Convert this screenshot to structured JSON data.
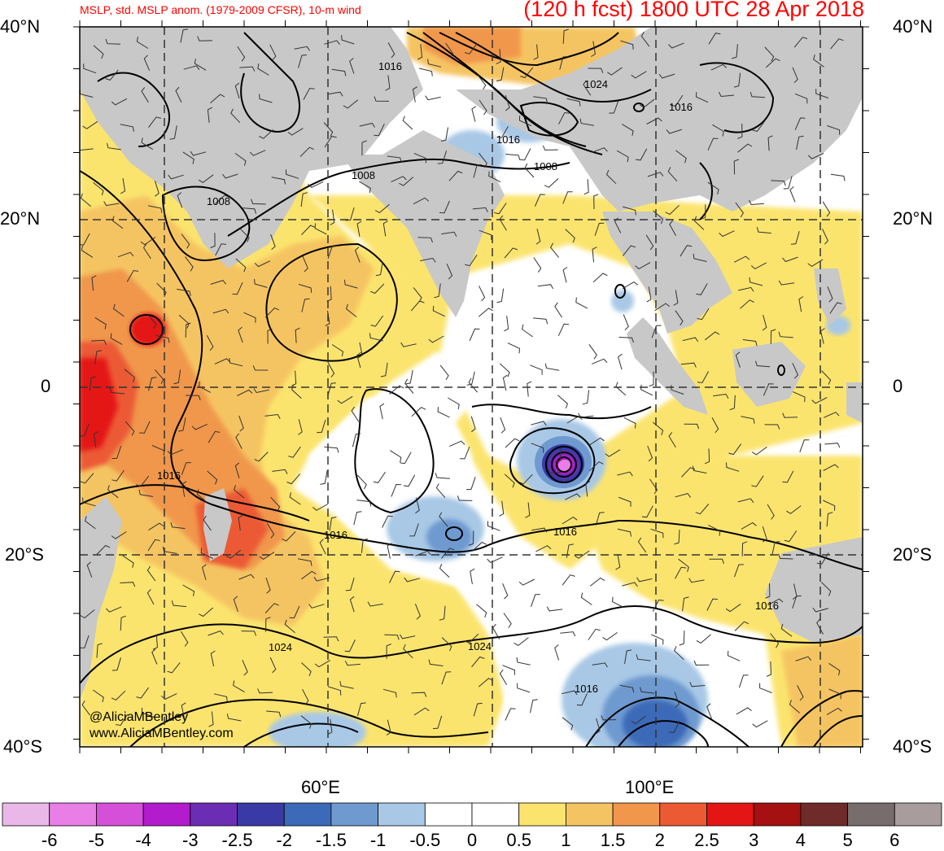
{
  "header": {
    "left_title": "MSLP, std. MSLP anom. (1979-2009 CFSR), 10-m wind",
    "right_title": "(120 h fcst) 1800 UTC 28 Apr 2018"
  },
  "axes": {
    "lat_labels_left": [
      "40°N",
      "20°N",
      "0",
      "20°S",
      "40°S"
    ],
    "lat_labels_right": [
      "40°N",
      "20°N",
      "0",
      "20°S",
      "40°S"
    ],
    "lon_labels": [
      "60°E",
      "100°E"
    ]
  },
  "contour_labels": [
    "1016",
    "1024",
    "1016",
    "1008",
    "1008",
    "1008",
    "1016",
    "1016",
    "1016",
    "1016",
    "1024",
    "1024",
    "1016",
    "1016"
  ],
  "credits": {
    "line1": "@AliciaMBentley",
    "line2": "www.AliciaMBentley.com"
  },
  "colorbar": {
    "labels": [
      "-6",
      "-5",
      "-4",
      "-3",
      "-2.5",
      "-2",
      "-1.5",
      "-1",
      "-0.5",
      "0",
      "0.5",
      "1",
      "1.5",
      "2",
      "2.5",
      "3",
      "4",
      "5",
      "6"
    ],
    "colors": [
      "#e9b8e8",
      "#e87ee6",
      "#d64fd9",
      "#b21ccd",
      "#6b2db4",
      "#3a3aa6",
      "#3c6ab8",
      "#6e9ad0",
      "#a8c8e6",
      "#ffffff",
      "#ffffff",
      "#fbe46e",
      "#f5c462",
      "#f0974c",
      "#ec5a34",
      "#e41515",
      "#a51010",
      "#6f2a2a",
      "#776d6d",
      "#a89d9c"
    ]
  },
  "colors": {
    "land": "#c8c8c8",
    "ocean_neutral": "#ffffff",
    "title": "#ff0000"
  }
}
